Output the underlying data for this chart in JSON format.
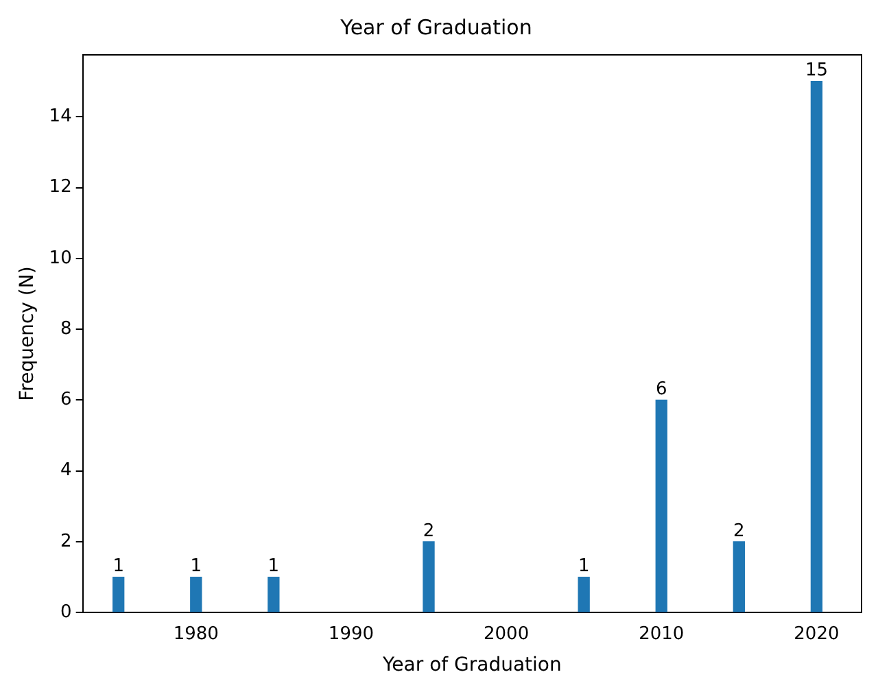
{
  "chart_data": {
    "type": "bar",
    "title": "Year of Graduation",
    "xlabel": "Year of Graduation",
    "ylabel": "Frequency (N)",
    "x": [
      1975,
      1980,
      1985,
      1995,
      2005,
      2010,
      2015,
      2020
    ],
    "values": [
      1,
      1,
      1,
      2,
      1,
      6,
      2,
      15
    ],
    "color": "#1f77b4",
    "xlim": [
      1972.7,
      2022.9
    ],
    "xticks": [
      1980,
      1990,
      2000,
      2010,
      2020
    ],
    "ylim": [
      0,
      15.75
    ],
    "yticks": [
      0,
      2,
      4,
      6,
      8,
      10,
      12,
      14
    ],
    "data_labels": true,
    "grid": false,
    "legend": false
  }
}
